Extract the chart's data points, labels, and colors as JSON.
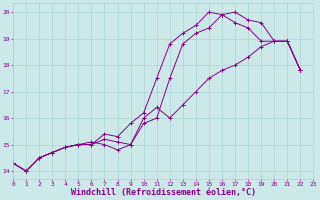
{
  "xlabel": "Windchill (Refroidissement éolien,°C)",
  "background_color": "#cce8e8",
  "line_color": "#880088",
  "xlim": [
    0,
    23
  ],
  "ylim": [
    13.7,
    20.35
  ],
  "yticks": [
    14,
    15,
    16,
    17,
    18,
    19,
    20
  ],
  "xticks": [
    0,
    1,
    2,
    3,
    4,
    5,
    6,
    7,
    8,
    9,
    10,
    11,
    12,
    13,
    14,
    15,
    16,
    17,
    18,
    19,
    20,
    21,
    22,
    23
  ],
  "series": [
    {
      "x": [
        0,
        1,
        2,
        3,
        4,
        5,
        6,
        7,
        8,
        9,
        10,
        11,
        12,
        13,
        14,
        15,
        16,
        17,
        18,
        19,
        20,
        21,
        22
      ],
      "y": [
        14.3,
        14.0,
        14.5,
        14.7,
        14.9,
        15.0,
        15.0,
        15.2,
        15.1,
        15.0,
        15.8,
        16.0,
        17.5,
        18.8,
        19.2,
        19.4,
        19.9,
        20.0,
        19.7,
        19.6,
        18.9,
        18.9,
        17.8
      ]
    },
    {
      "x": [
        0,
        1,
        2,
        3,
        4,
        5,
        6,
        7,
        8,
        9,
        10,
        11,
        12,
        13,
        14,
        15,
        16,
        17,
        18,
        19,
        20,
        21,
        22
      ],
      "y": [
        14.3,
        14.0,
        14.5,
        14.7,
        14.9,
        15.0,
        15.0,
        15.4,
        15.3,
        15.8,
        16.2,
        17.5,
        18.8,
        19.2,
        19.5,
        20.0,
        19.9,
        19.6,
        19.4,
        18.9,
        18.9,
        18.9,
        17.8
      ]
    },
    {
      "x": [
        0,
        1,
        2,
        3,
        4,
        5,
        6,
        7,
        8,
        9,
        10,
        11,
        12,
        13,
        14,
        15,
        16,
        17,
        18,
        19,
        20,
        21,
        22
      ],
      "y": [
        14.3,
        14.0,
        14.5,
        14.7,
        14.9,
        15.0,
        15.1,
        15.0,
        14.8,
        15.0,
        16.0,
        16.4,
        16.0,
        16.5,
        17.0,
        17.5,
        17.8,
        18.0,
        18.3,
        18.7,
        18.9,
        18.9,
        17.8
      ]
    }
  ],
  "grid_color": "#aad4d4",
  "tick_color": "#880088",
  "tick_fontsize": 4.5,
  "xlabel_fontsize": 6.0,
  "xlabel_fontweight": "bold"
}
